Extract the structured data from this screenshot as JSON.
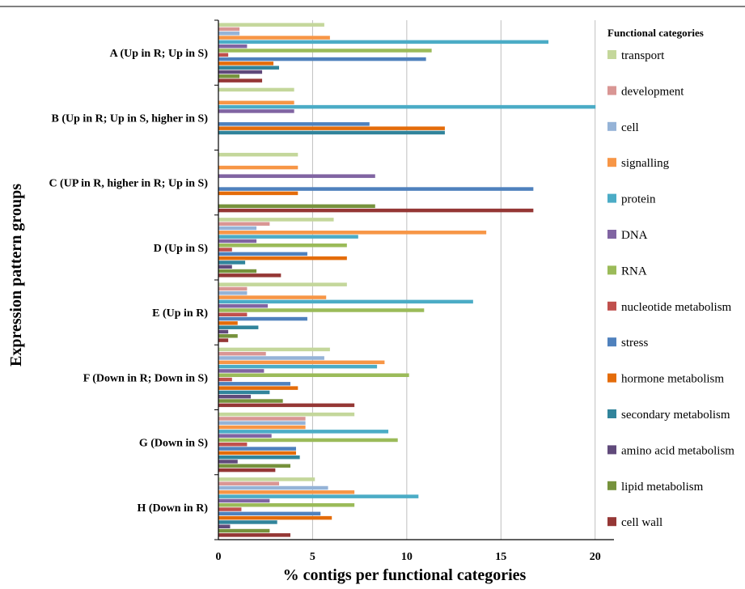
{
  "chart_data": {
    "type": "bar",
    "orientation": "horizontal",
    "xlabel": "% contigs per functional categories",
    "ylabel": "Expression pattern groups",
    "xlim": [
      0,
      21
    ],
    "xticks": [
      0,
      5,
      10,
      15,
      20
    ],
    "grid": true,
    "legend": {
      "title": "Functional categories",
      "placement": "right"
    },
    "categories": [
      "A (Up in R; Up in S)",
      "B (Up in R; Up in S, higher in S)",
      "C (UP in R, higher in R; Up in S)",
      "D (Up in S)",
      "E (Up in R)",
      "F (Down in R; Down in S)",
      "G (Down in S)",
      "H (Down in R)"
    ],
    "series": [
      {
        "name": "transport",
        "color": "#c4d79b",
        "values": [
          5.6,
          4.0,
          4.2,
          6.1,
          6.8,
          5.9,
          7.2,
          5.1
        ]
      },
      {
        "name": "development",
        "color": "#d99694",
        "values": [
          1.1,
          0,
          0,
          2.7,
          1.5,
          2.5,
          4.6,
          3.2
        ]
      },
      {
        "name": "cell",
        "color": "#95b3d7",
        "values": [
          1.1,
          0,
          0,
          2.0,
          1.5,
          5.6,
          4.6,
          5.8
        ]
      },
      {
        "name": "signalling",
        "color": "#f79646",
        "values": [
          5.9,
          4.0,
          4.2,
          14.2,
          5.7,
          8.8,
          4.6,
          7.2
        ]
      },
      {
        "name": "protein",
        "color": "#4bacc6",
        "values": [
          17.5,
          20.0,
          0,
          7.4,
          13.5,
          8.4,
          9.0,
          10.6
        ]
      },
      {
        "name": "DNA",
        "color": "#8064a2",
        "values": [
          1.5,
          4.0,
          8.3,
          2.0,
          2.6,
          2.4,
          2.8,
          2.7
        ]
      },
      {
        "name": "RNA",
        "color": "#9bbb59",
        "values": [
          11.3,
          0,
          0,
          6.8,
          10.9,
          10.1,
          9.5,
          7.2
        ]
      },
      {
        "name": "nucleotide metabolism",
        "color": "#c0504d",
        "values": [
          0.5,
          0,
          0,
          0.7,
          1.5,
          0.7,
          1.5,
          1.2
        ]
      },
      {
        "name": "stress",
        "color": "#4f81bd",
        "values": [
          11.0,
          8.0,
          16.7,
          4.7,
          4.7,
          3.8,
          4.1,
          5.4
        ]
      },
      {
        "name": "hormone metabolism",
        "color": "#e46c0a",
        "values": [
          2.9,
          12.0,
          4.2,
          6.8,
          1.0,
          4.2,
          4.1,
          6.0
        ]
      },
      {
        "name": "secondary metabolism",
        "color": "#31849b",
        "values": [
          3.2,
          12.0,
          0,
          1.4,
          2.1,
          2.7,
          4.3,
          3.1
        ]
      },
      {
        "name": "amino acid metabolism",
        "color": "#604a7b",
        "values": [
          2.3,
          0,
          0,
          0.7,
          0.5,
          1.7,
          1.0,
          0.6
        ]
      },
      {
        "name": "lipid metabolism",
        "color": "#76923c",
        "values": [
          1.1,
          0,
          8.3,
          2.0,
          1.0,
          3.4,
          3.8,
          2.7
        ]
      },
      {
        "name": "cell wall",
        "color": "#953735",
        "values": [
          2.3,
          0,
          16.7,
          3.3,
          0.5,
          7.2,
          3.0,
          3.8
        ]
      }
    ]
  }
}
